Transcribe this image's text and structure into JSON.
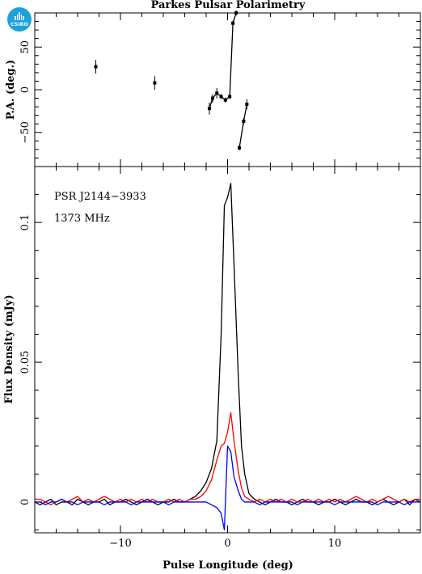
{
  "title": "Parkes Pulsar Polarimetry",
  "logo": {
    "text": "CSIRO",
    "color": "#1aa3d6"
  },
  "annotations": {
    "pulsar": "PSR J2144−3933",
    "frequency": "1373 MHz"
  },
  "colors": {
    "total": "#000000",
    "linear": "#ff0000",
    "circular": "#0000ff"
  },
  "chart_data": [
    {
      "type": "scatter",
      "ylabel": "P.A. (deg.)",
      "xlim": [
        -18,
        18
      ],
      "ylim": [
        -90,
        90
      ],
      "yticks": [
        -50,
        0,
        50
      ],
      "ytick_labels": [
        "−50",
        "0",
        "50"
      ],
      "points": [
        {
          "x": -12.3,
          "y": 27,
          "err": 8
        },
        {
          "x": -6.8,
          "y": 8,
          "err": 8
        },
        {
          "x": -1.7,
          "y": -22,
          "err": 7
        },
        {
          "x": -1.4,
          "y": -10,
          "err": 5
        },
        {
          "x": -1.0,
          "y": -4,
          "err": 6
        },
        {
          "x": -0.6,
          "y": -8,
          "err": 3
        },
        {
          "x": -0.2,
          "y": -12,
          "err": 3
        },
        {
          "x": 0.2,
          "y": -8,
          "err": 3
        },
        {
          "x": 0.5,
          "y": 78,
          "err": 3
        },
        {
          "x": 0.8,
          "y": 90,
          "err": 3
        },
        {
          "x": 1.1,
          "y": -68,
          "err": 3
        },
        {
          "x": 1.5,
          "y": -37,
          "err": 4
        },
        {
          "x": 1.8,
          "y": -17,
          "err": 6
        }
      ],
      "segments": [
        [
          2,
          8
        ],
        [
          8,
          9
        ],
        [
          10,
          12
        ]
      ]
    },
    {
      "type": "line",
      "xlabel": "Pulse Longitude (deg)",
      "ylabel": "Flux Density (mJy)",
      "xlim": [
        -18,
        18
      ],
      "ylim": [
        -0.011,
        0.12
      ],
      "xticks": [
        -10,
        0,
        10
      ],
      "xtick_labels": [
        "−10",
        "0",
        "10"
      ],
      "yticks": [
        0,
        0.05,
        0.1
      ],
      "ytick_labels": [
        "0",
        "0.05",
        "0.1"
      ],
      "series": [
        {
          "key": "total",
          "x": [
            -18.0,
            -17.5,
            -17.0,
            -16.5,
            -16.0,
            -15.5,
            -15.0,
            -14.5,
            -14.0,
            -13.5,
            -13.0,
            -12.5,
            -12.0,
            -11.5,
            -11.0,
            -10.5,
            -10.0,
            -9.5,
            -9.0,
            -8.5,
            -8.0,
            -7.5,
            -7.0,
            -6.5,
            -6.0,
            -5.5,
            -5.0,
            -4.5,
            -4.0,
            -3.5,
            -3.0,
            -2.5,
            -2.0,
            -1.5,
            -1.0,
            -0.6,
            -0.3,
            0.0,
            0.3,
            0.6,
            1.0,
            1.3,
            1.6,
            2.0,
            2.5,
            3.0,
            3.5,
            4.0,
            4.5,
            5.0,
            5.5,
            6.0,
            6.5,
            7.0,
            7.5,
            8.0,
            8.5,
            9.0,
            9.5,
            10.0,
            10.5,
            11.0,
            11.5,
            12.0,
            12.5,
            13.0,
            13.5,
            14.0,
            14.5,
            15.0,
            15.5,
            16.0,
            16.5,
            17.0,
            17.5,
            18.0
          ],
          "values": [
            0.0,
            -0.001,
            0.0,
            0.001,
            -0.001,
            0.0,
            0.0,
            -0.001,
            0.001,
            0.0,
            -0.001,
            0.0,
            0.0,
            0.001,
            -0.001,
            0.0,
            0.0,
            0.001,
            0.0,
            -0.001,
            0.0,
            0.001,
            0.0,
            -0.001,
            0.0,
            0.0,
            0.001,
            0.0,
            0.0,
            0.001,
            0.002,
            0.004,
            0.007,
            0.012,
            0.022,
            0.06,
            0.106,
            0.109,
            0.114,
            0.085,
            0.045,
            0.02,
            0.01,
            0.003,
            0.001,
            0.0,
            -0.001,
            0.0,
            0.001,
            0.0,
            0.0,
            -0.001,
            0.0,
            0.001,
            0.0,
            0.0,
            -0.001,
            0.0,
            0.0,
            0.001,
            0.0,
            -0.001,
            0.0,
            0.001,
            0.0,
            0.0,
            -0.001,
            0.0,
            0.001,
            0.0,
            -0.001,
            0.0,
            0.001,
            -0.001,
            0.001,
            0.0
          ]
        },
        {
          "key": "linear",
          "x": [
            -18.0,
            -17.5,
            -17.0,
            -16.5,
            -16.0,
            -15.5,
            -15.0,
            -14.5,
            -14.0,
            -13.5,
            -13.0,
            -12.5,
            -12.0,
            -11.5,
            -11.0,
            -10.5,
            -10.0,
            -9.5,
            -9.0,
            -8.5,
            -8.0,
            -7.5,
            -7.0,
            -6.5,
            -6.0,
            -5.5,
            -5.0,
            -4.5,
            -4.0,
            -3.5,
            -3.0,
            -2.5,
            -2.0,
            -1.5,
            -1.0,
            -0.6,
            -0.3,
            0.0,
            0.3,
            0.6,
            1.0,
            1.3,
            1.6,
            2.0,
            2.5,
            3.0,
            3.5,
            4.0,
            4.5,
            5.0,
            5.5,
            6.0,
            6.5,
            7.0,
            7.5,
            8.0,
            8.5,
            9.0,
            9.5,
            10.0,
            10.5,
            11.0,
            11.5,
            12.0,
            12.5,
            13.0,
            13.5,
            14.0,
            14.5,
            15.0,
            15.5,
            16.0,
            16.5,
            17.0,
            17.5,
            18.0
          ],
          "values": [
            0.001,
            0.001,
            0.0,
            -0.001,
            0.0,
            0.001,
            0.0,
            0.001,
            0.002,
            0.0,
            0.001,
            0.0,
            0.001,
            0.002,
            0.001,
            0.0,
            0.001,
            0.0,
            0.001,
            0.0,
            0.001,
            0.0,
            0.001,
            0.0,
            0.0,
            0.001,
            0.0,
            0.001,
            0.0,
            0.001,
            0.001,
            0.002,
            0.004,
            0.008,
            0.015,
            0.02,
            0.021,
            0.025,
            0.032,
            0.022,
            0.011,
            0.005,
            0.002,
            0.001,
            0.0,
            0.001,
            0.0,
            0.001,
            0.0,
            0.001,
            0.0,
            0.001,
            0.0,
            0.0,
            0.001,
            0.0,
            0.001,
            0.0,
            0.001,
            0.0,
            0.001,
            0.0,
            0.001,
            0.002,
            0.001,
            0.0,
            0.001,
            0.0,
            0.001,
            0.002,
            0.001,
            0.0,
            0.001,
            0.0,
            0.001,
            0.001
          ]
        },
        {
          "key": "circular",
          "x": [
            -18.0,
            -17.5,
            -17.0,
            -16.5,
            -16.0,
            -15.5,
            -15.0,
            -14.5,
            -14.0,
            -13.5,
            -13.0,
            -12.5,
            -12.0,
            -11.5,
            -11.0,
            -10.5,
            -10.0,
            -9.5,
            -9.0,
            -8.5,
            -8.0,
            -7.5,
            -7.0,
            -6.5,
            -6.0,
            -5.5,
            -5.0,
            -4.5,
            -4.0,
            -3.5,
            -3.0,
            -2.5,
            -2.0,
            -1.5,
            -1.0,
            -0.6,
            -0.3,
            0.0,
            0.3,
            0.6,
            1.0,
            1.3,
            1.6,
            2.0,
            2.5,
            3.0,
            3.5,
            4.0,
            4.5,
            5.0,
            5.5,
            6.0,
            6.5,
            7.0,
            7.5,
            8.0,
            8.5,
            9.0,
            9.5,
            10.0,
            10.5,
            11.0,
            11.5,
            12.0,
            12.5,
            13.0,
            13.5,
            14.0,
            14.5,
            15.0,
            15.5,
            16.0,
            16.5,
            17.0,
            17.5,
            18.0
          ],
          "values": [
            0.0,
            0.0,
            -0.001,
            0.0,
            0.0,
            0.001,
            0.0,
            0.0,
            -0.001,
            0.0,
            0.0,
            0.0,
            0.0,
            -0.001,
            0.0,
            0.0,
            0.0,
            0.0,
            -0.001,
            0.0,
            0.0,
            0.0,
            0.0,
            0.0,
            0.0,
            -0.001,
            0.0,
            0.0,
            0.0,
            0.0,
            0.0,
            0.0,
            0.0,
            -0.001,
            -0.002,
            -0.004,
            -0.01,
            0.02,
            0.018,
            0.009,
            0.004,
            0.001,
            0.0,
            0.0,
            0.0,
            -0.001,
            0.0,
            0.0,
            0.0,
            0.0,
            0.0,
            0.0,
            -0.001,
            0.0,
            0.0,
            0.0,
            0.0,
            0.0,
            0.0,
            -0.001,
            0.0,
            0.0,
            0.0,
            0.0,
            0.0,
            0.0,
            0.0,
            -0.001,
            0.0,
            0.0,
            0.0,
            0.0,
            -0.001,
            0.0,
            0.0,
            0.0
          ]
        }
      ]
    }
  ]
}
